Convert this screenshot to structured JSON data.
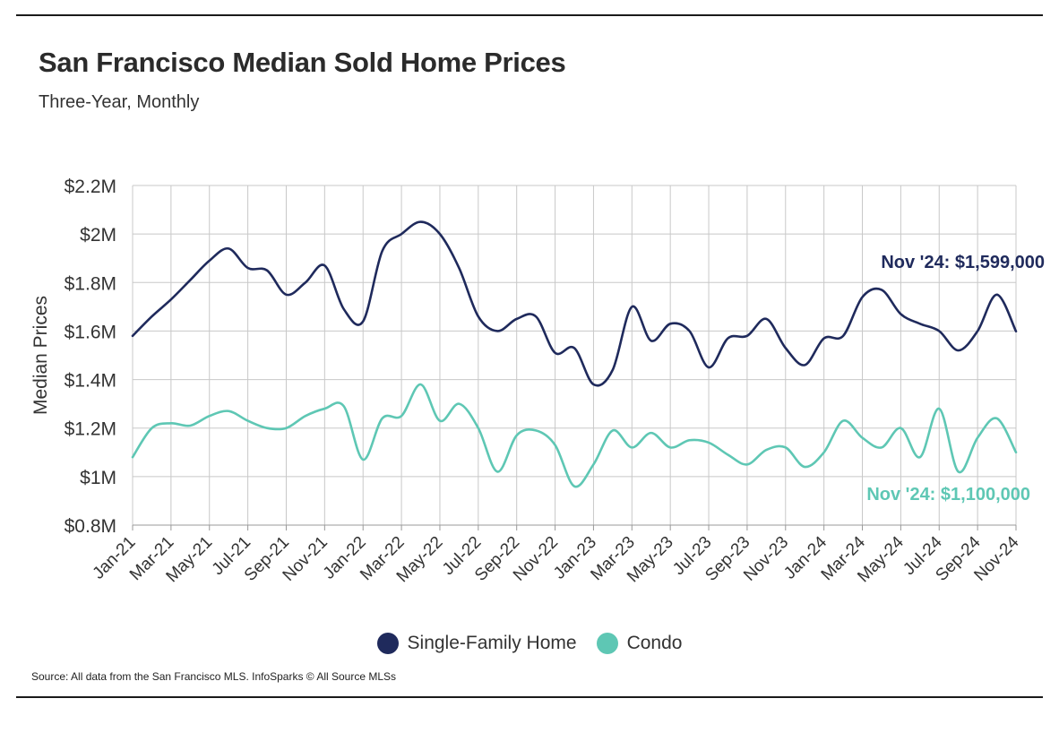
{
  "title": "San Francisco Median Sold Home Prices",
  "subtitle": "Three-Year, Monthly",
  "source": "Source:  All data from the San Francisco MLS. InfoSparks © All Source MLSs",
  "colors": {
    "sfh": "#1f2a5c",
    "condo": "#5ec7b4",
    "grid": "#c8c8c8",
    "axis": "#999999"
  },
  "chart_data": {
    "type": "line",
    "ylabel": "Median Prices",
    "xlabel": "",
    "ylim": [
      800000,
      2200000
    ],
    "yticks": [
      {
        "value": 800000,
        "label": "$0.8M"
      },
      {
        "value": 1000000,
        "label": "$1M"
      },
      {
        "value": 1200000,
        "label": "$1.2M"
      },
      {
        "value": 1400000,
        "label": "$1.4M"
      },
      {
        "value": 1600000,
        "label": "$1.6M"
      },
      {
        "value": 1800000,
        "label": "$1.8M"
      },
      {
        "value": 2000000,
        "label": "$2M"
      },
      {
        "value": 2200000,
        "label": "$2.2M"
      }
    ],
    "x": [
      "Jan-21",
      "Feb-21",
      "Mar-21",
      "Apr-21",
      "May-21",
      "Jun-21",
      "Jul-21",
      "Aug-21",
      "Sep-21",
      "Oct-21",
      "Nov-21",
      "Dec-21",
      "Jan-22",
      "Feb-22",
      "Mar-22",
      "Apr-22",
      "May-22",
      "Jun-22",
      "Jul-22",
      "Aug-22",
      "Sep-22",
      "Oct-22",
      "Nov-22",
      "Dec-22",
      "Jan-23",
      "Feb-23",
      "Mar-23",
      "Apr-23",
      "May-23",
      "Jun-23",
      "Jul-23",
      "Aug-23",
      "Sep-23",
      "Oct-23",
      "Nov-23",
      "Dec-23",
      "Jan-24",
      "Feb-24",
      "Mar-24",
      "Apr-24",
      "May-24",
      "Jun-24",
      "Jul-24",
      "Aug-24",
      "Sep-24",
      "Oct-24",
      "Nov-24"
    ],
    "tick_labels": [
      "Jan-21",
      "Mar-21",
      "May-21",
      "Jul-21",
      "Sep-21",
      "Nov-21",
      "Jan-22",
      "Mar-22",
      "May-22",
      "Jul-22",
      "Sep-22",
      "Nov-22",
      "Jan-23",
      "Mar-23",
      "May-23",
      "Jul-23",
      "Sep-23",
      "Nov-23",
      "Jan-24",
      "Mar-24",
      "May-24",
      "Jul-24",
      "Sep-24",
      "Nov-24"
    ],
    "grid": true,
    "legend_position": "bottom",
    "series": [
      {
        "name": "Single-Family Home",
        "color": "#1f2a5c",
        "values": [
          1580000,
          1660000,
          1730000,
          1810000,
          1890000,
          1940000,
          1860000,
          1850000,
          1750000,
          1800000,
          1870000,
          1690000,
          1640000,
          1930000,
          2000000,
          2050000,
          2000000,
          1860000,
          1660000,
          1600000,
          1650000,
          1660000,
          1510000,
          1530000,
          1380000,
          1440000,
          1700000,
          1560000,
          1630000,
          1600000,
          1450000,
          1570000,
          1580000,
          1650000,
          1530000,
          1460000,
          1570000,
          1580000,
          1740000,
          1770000,
          1670000,
          1630000,
          1600000,
          1520000,
          1600000,
          1750000,
          1599000
        ]
      },
      {
        "name": "Condo",
        "color": "#5ec7b4",
        "values": [
          1080000,
          1200000,
          1220000,
          1210000,
          1250000,
          1270000,
          1230000,
          1200000,
          1200000,
          1250000,
          1280000,
          1290000,
          1070000,
          1240000,
          1250000,
          1380000,
          1230000,
          1300000,
          1200000,
          1020000,
          1170000,
          1190000,
          1130000,
          960000,
          1050000,
          1190000,
          1120000,
          1180000,
          1120000,
          1150000,
          1140000,
          1090000,
          1050000,
          1110000,
          1120000,
          1040000,
          1100000,
          1230000,
          1160000,
          1120000,
          1200000,
          1080000,
          1280000,
          1020000,
          1160000,
          1240000,
          1100000
        ]
      }
    ],
    "annotations": [
      {
        "series": "Single-Family Home",
        "text": "Nov '24: $1,599,000"
      },
      {
        "series": "Condo",
        "text": "Nov '24: $1,100,000"
      }
    ]
  }
}
